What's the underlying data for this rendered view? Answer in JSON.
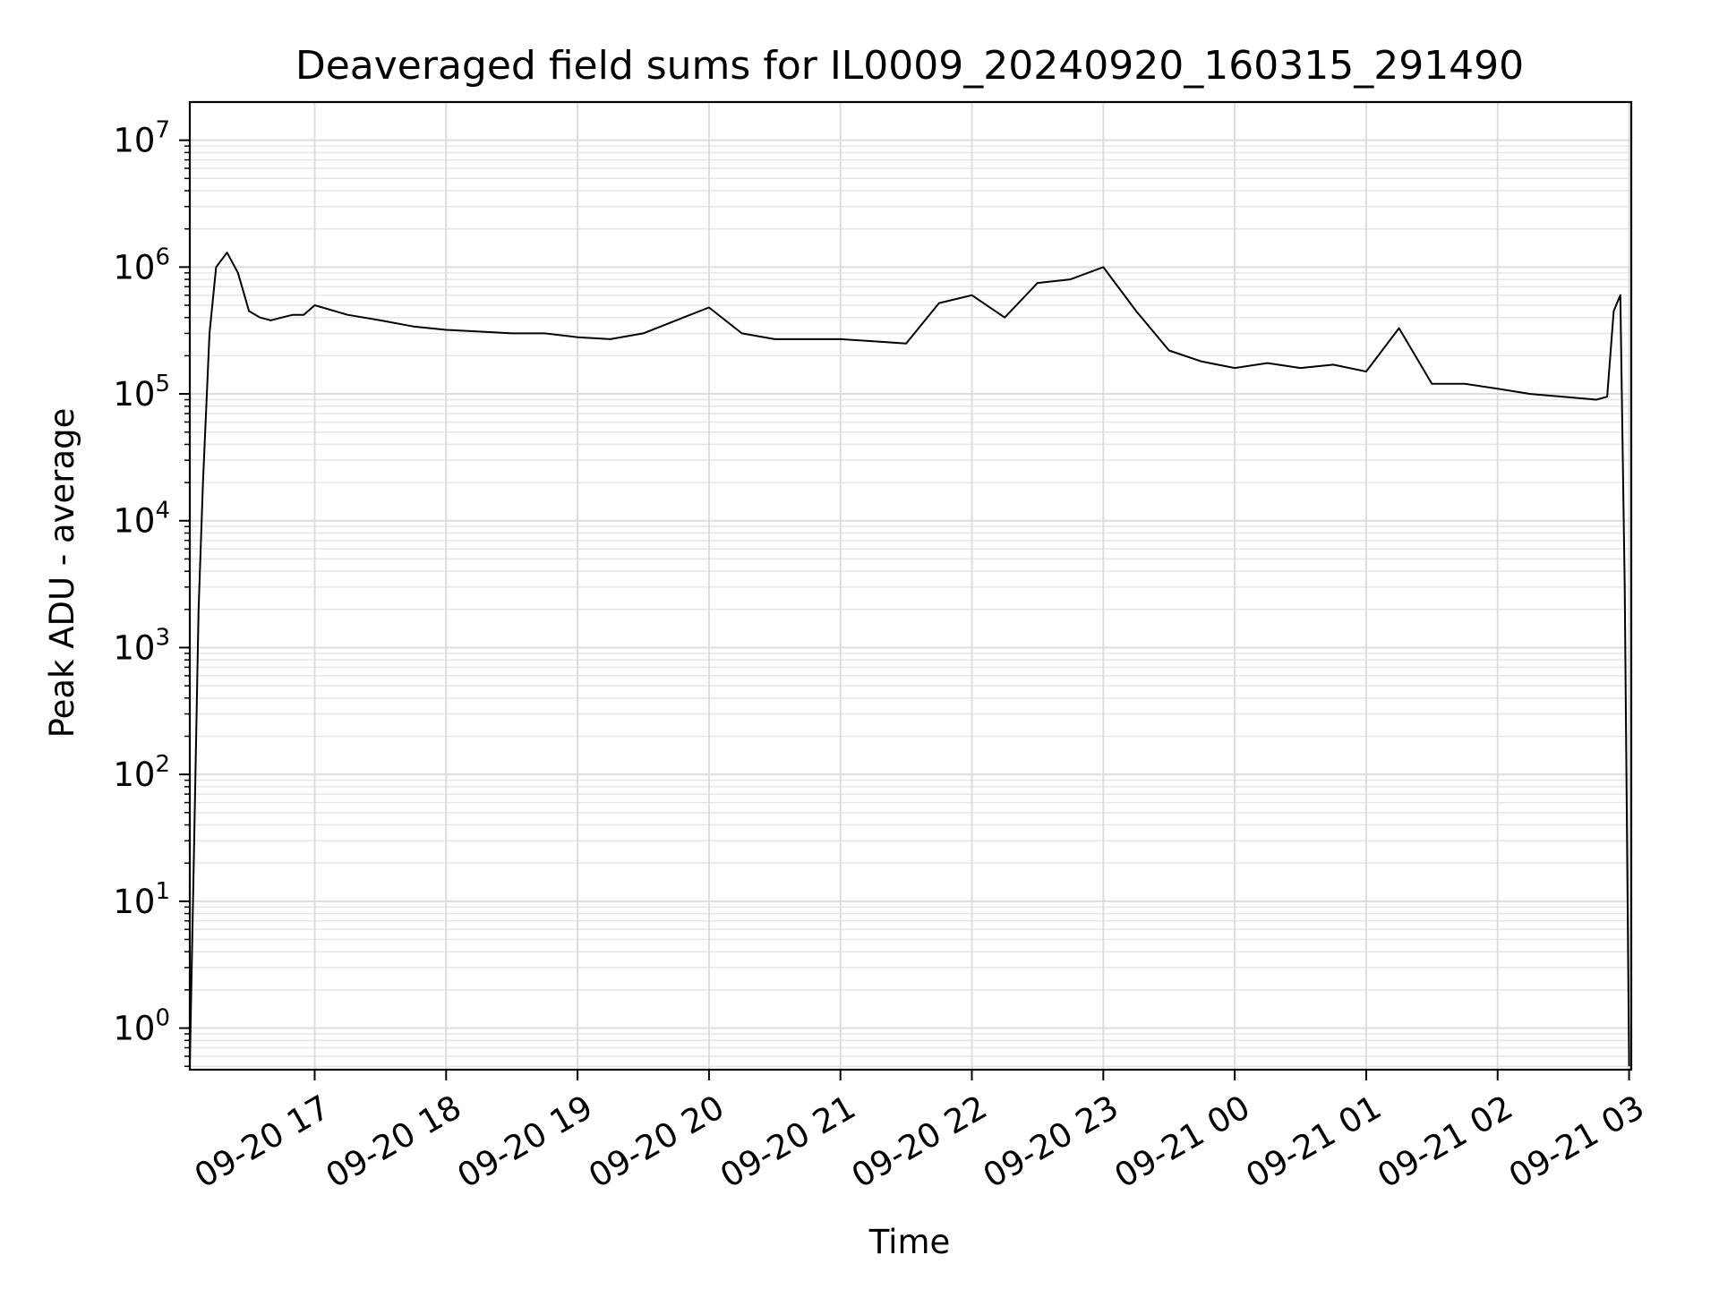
{
  "chart_data": {
    "type": "line",
    "title": "Deaveraged field sums for IL0009_20240920_160315_291490",
    "xlabel": "Time",
    "ylabel": "Peak ADU - average",
    "yscale": "log",
    "ylim": [
      0.47,
      20000000
    ],
    "xlim": [
      "2024-09-20 16:03",
      "2024-09-21 03:01"
    ],
    "grid": true,
    "line_color": "#000000",
    "x_tick_labels": [
      "09-20 17",
      "09-20 18",
      "09-20 19",
      "09-20 20",
      "09-20 21",
      "09-20 22",
      "09-20 23",
      "09-21 00",
      "09-21 01",
      "09-21 02",
      "09-21 03"
    ],
    "x_tick_times": [
      "2024-09-20 17:00",
      "2024-09-20 18:00",
      "2024-09-20 19:00",
      "2024-09-20 20:00",
      "2024-09-20 21:00",
      "2024-09-20 22:00",
      "2024-09-20 23:00",
      "2024-09-21 00:00",
      "2024-09-21 01:00",
      "2024-09-21 02:00",
      "2024-09-21 03:00"
    ],
    "y_ticks": [
      {
        "base": "10",
        "exp": "0",
        "value": 1
      },
      {
        "base": "10",
        "exp": "1",
        "value": 10
      },
      {
        "base": "10",
        "exp": "2",
        "value": 100
      },
      {
        "base": "10",
        "exp": "3",
        "value": 1000
      },
      {
        "base": "10",
        "exp": "4",
        "value": 10000
      },
      {
        "base": "10",
        "exp": "5",
        "value": 100000
      },
      {
        "base": "10",
        "exp": "6",
        "value": 1000000
      },
      {
        "base": "10",
        "exp": "7",
        "value": 10000000
      }
    ],
    "series": [
      {
        "x": [
          "2024-09-20 16:03",
          "2024-09-20 16:05",
          "2024-09-20 16:07",
          "2024-09-20 16:09",
          "2024-09-20 16:12",
          "2024-09-20 16:15",
          "2024-09-20 16:20",
          "2024-09-20 16:25",
          "2024-09-20 16:30",
          "2024-09-20 16:35",
          "2024-09-20 16:40",
          "2024-09-20 16:45",
          "2024-09-20 16:50",
          "2024-09-20 16:55",
          "2024-09-20 17:00",
          "2024-09-20 17:15",
          "2024-09-20 17:30",
          "2024-09-20 17:45",
          "2024-09-20 18:00",
          "2024-09-20 18:15",
          "2024-09-20 18:30",
          "2024-09-20 18:45",
          "2024-09-20 19:00",
          "2024-09-20 19:15",
          "2024-09-20 19:30",
          "2024-09-20 19:45",
          "2024-09-20 20:00",
          "2024-09-20 20:15",
          "2024-09-20 20:30",
          "2024-09-20 20:45",
          "2024-09-20 21:00",
          "2024-09-20 21:15",
          "2024-09-20 21:30",
          "2024-09-20 21:45",
          "2024-09-20 22:00",
          "2024-09-20 22:15",
          "2024-09-20 22:30",
          "2024-09-20 22:45",
          "2024-09-20 23:00",
          "2024-09-20 23:15",
          "2024-09-20 23:30",
          "2024-09-20 23:45",
          "2024-09-21 00:00",
          "2024-09-21 00:15",
          "2024-09-21 00:30",
          "2024-09-21 00:45",
          "2024-09-21 01:00",
          "2024-09-21 01:15",
          "2024-09-21 01:30",
          "2024-09-21 01:45",
          "2024-09-21 02:00",
          "2024-09-21 02:15",
          "2024-09-21 02:30",
          "2024-09-21 02:45",
          "2024-09-21 02:50",
          "2024-09-21 02:53",
          "2024-09-21 02:56",
          "2024-09-21 02:58",
          "2024-09-21 03:00"
        ],
        "y": [
          0.5,
          30,
          2000,
          20000,
          300000,
          1000000,
          1300000,
          900000,
          450000,
          400000,
          380000,
          400000,
          420000,
          420000,
          500000,
          420000,
          380000,
          340000,
          320000,
          310000,
          300000,
          300000,
          280000,
          270000,
          300000,
          380000,
          480000,
          300000,
          270000,
          270000,
          270000,
          260000,
          250000,
          520000,
          600000,
          400000,
          750000,
          800000,
          1000000,
          450000,
          220000,
          180000,
          160000,
          175000,
          160000,
          170000,
          150000,
          330000,
          120000,
          120000,
          110000,
          100000,
          95000,
          90000,
          95000,
          450000,
          600000,
          3000,
          0.5
        ]
      }
    ]
  }
}
